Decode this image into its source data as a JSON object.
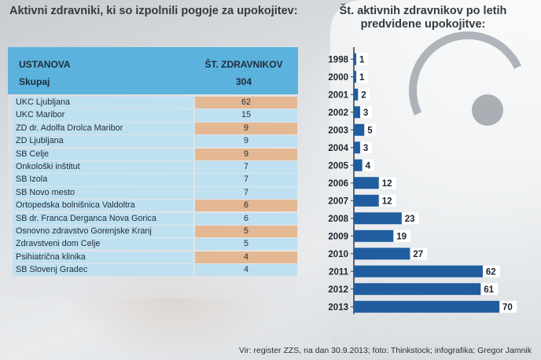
{
  "left_title": "Aktivni zdravniki, ki so izpolnili pogoje za upokojitev:",
  "table": {
    "header": {
      "col1": "USTANOVA",
      "col2": "ŠT. ZDRAVNIKOV"
    },
    "total": {
      "label": "Skupaj",
      "value": "304"
    },
    "rows": [
      {
        "name": "UKC Ljubljana",
        "value": "62"
      },
      {
        "name": "UKC Maribor",
        "value": "15"
      },
      {
        "name": "ZD dr. Adolfa Drolca Maribor",
        "value": "9"
      },
      {
        "name": "ZD Ljubljana",
        "value": "9"
      },
      {
        "name": "SB Celje",
        "value": "9"
      },
      {
        "name": "Onkološki inštitut",
        "value": "7"
      },
      {
        "name": "SB Izola",
        "value": "7"
      },
      {
        "name": "SB Novo mesto",
        "value": "7"
      },
      {
        "name": "Ortopedska bolnišnica Valdoltra",
        "value": "6"
      },
      {
        "name": "SB dr. Franca Derganca Nova Gorica",
        "value": "6"
      },
      {
        "name": "Osnovno zdravstvo Gorenjske Kranj",
        "value": "5"
      },
      {
        "name": "Zdravstveni dom Celje",
        "value": "5"
      },
      {
        "name": "Psihiatrična klinika",
        "value": "4"
      },
      {
        "name": "SB Slovenj Gradec",
        "value": "4"
      }
    ]
  },
  "chart_data": {
    "type": "bar",
    "orientation": "horizontal",
    "title": "Št. aktivnih zdravnikov po letih predvidene upokojitve:",
    "categories": [
      "1998",
      "2000",
      "2001",
      "2002",
      "2003",
      "2004",
      "2005",
      "2006",
      "2007",
      "2008",
      "2009",
      "2010",
      "2011",
      "2012",
      "2013"
    ],
    "values": [
      1,
      1,
      2,
      3,
      5,
      3,
      4,
      12,
      12,
      23,
      19,
      27,
      62,
      61,
      70
    ],
    "xlim": [
      0,
      70
    ],
    "grid": false,
    "legend": "none",
    "colors": {
      "bar": "#1f5d9e",
      "label_box": "#ffffff",
      "label_text": "#1b2530",
      "axis": "#2d3a46"
    }
  },
  "source": "Vir: register ZZS, na dan 30.9.2013; foto: Thinkstock; infografika: Gregor Jamnik",
  "colors": {
    "header_bg": "#5ab2dd",
    "row_bg": "#bfe0f1",
    "highlight_bg": "#e3b892"
  }
}
